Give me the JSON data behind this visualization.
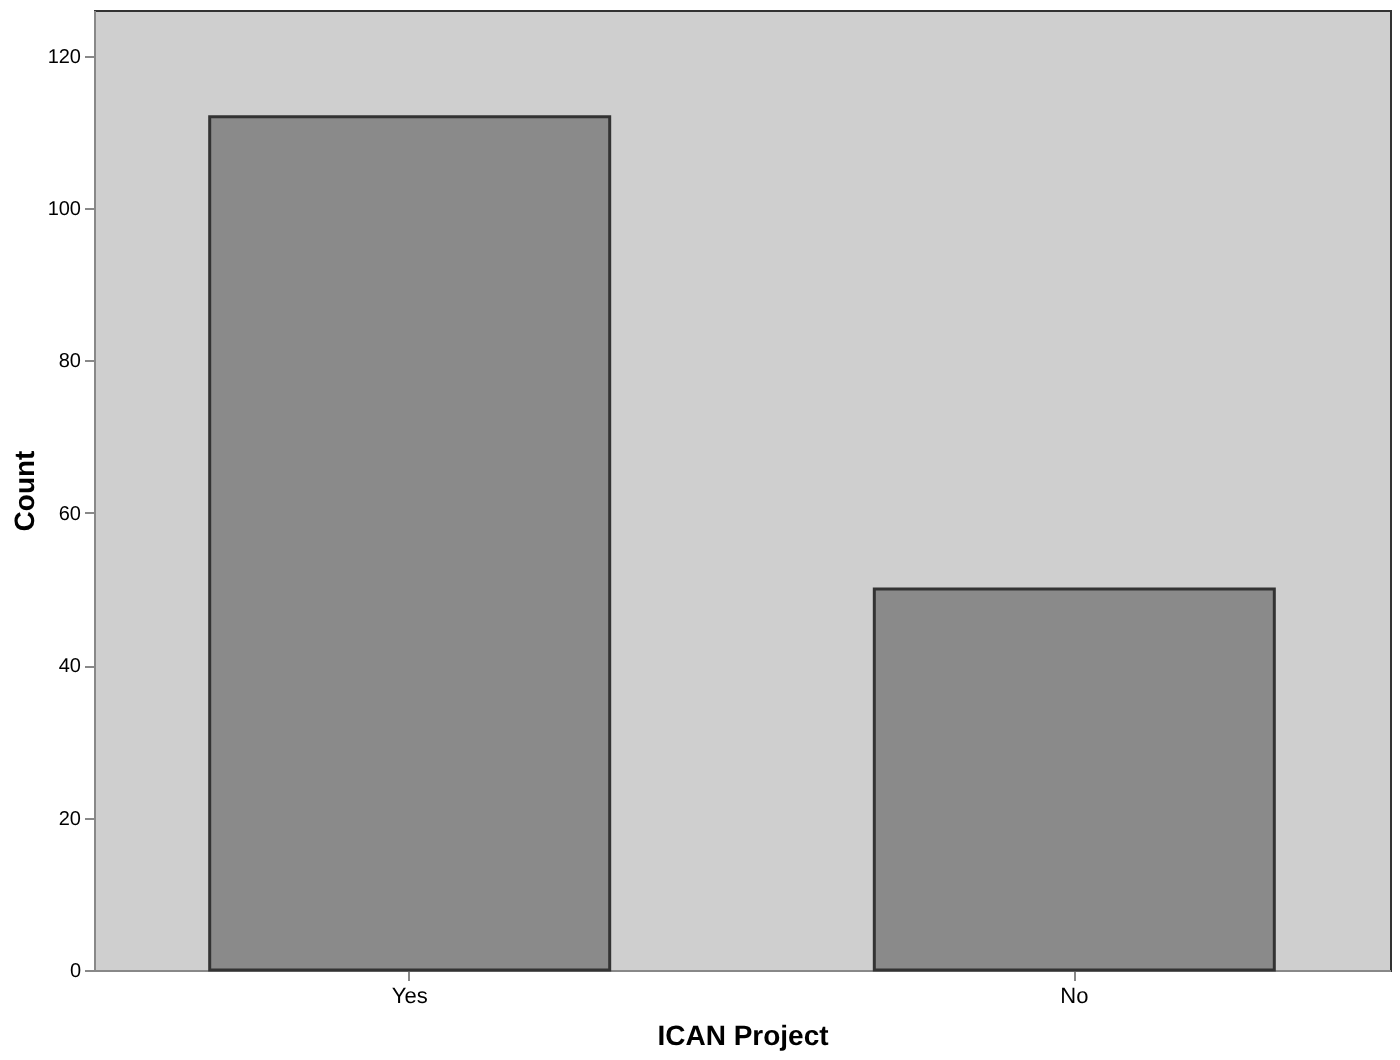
{
  "chart_data": {
    "type": "bar",
    "xlabel": "ICAN Project",
    "ylabel": "Count",
    "categories": [
      "Yes",
      "No"
    ],
    "values": [
      112,
      50
    ],
    "color": "#8a8a8a",
    "ylim": [
      0,
      126
    ],
    "yticks": [
      0,
      20,
      40,
      60,
      80,
      100,
      120
    ],
    "grid": false
  }
}
